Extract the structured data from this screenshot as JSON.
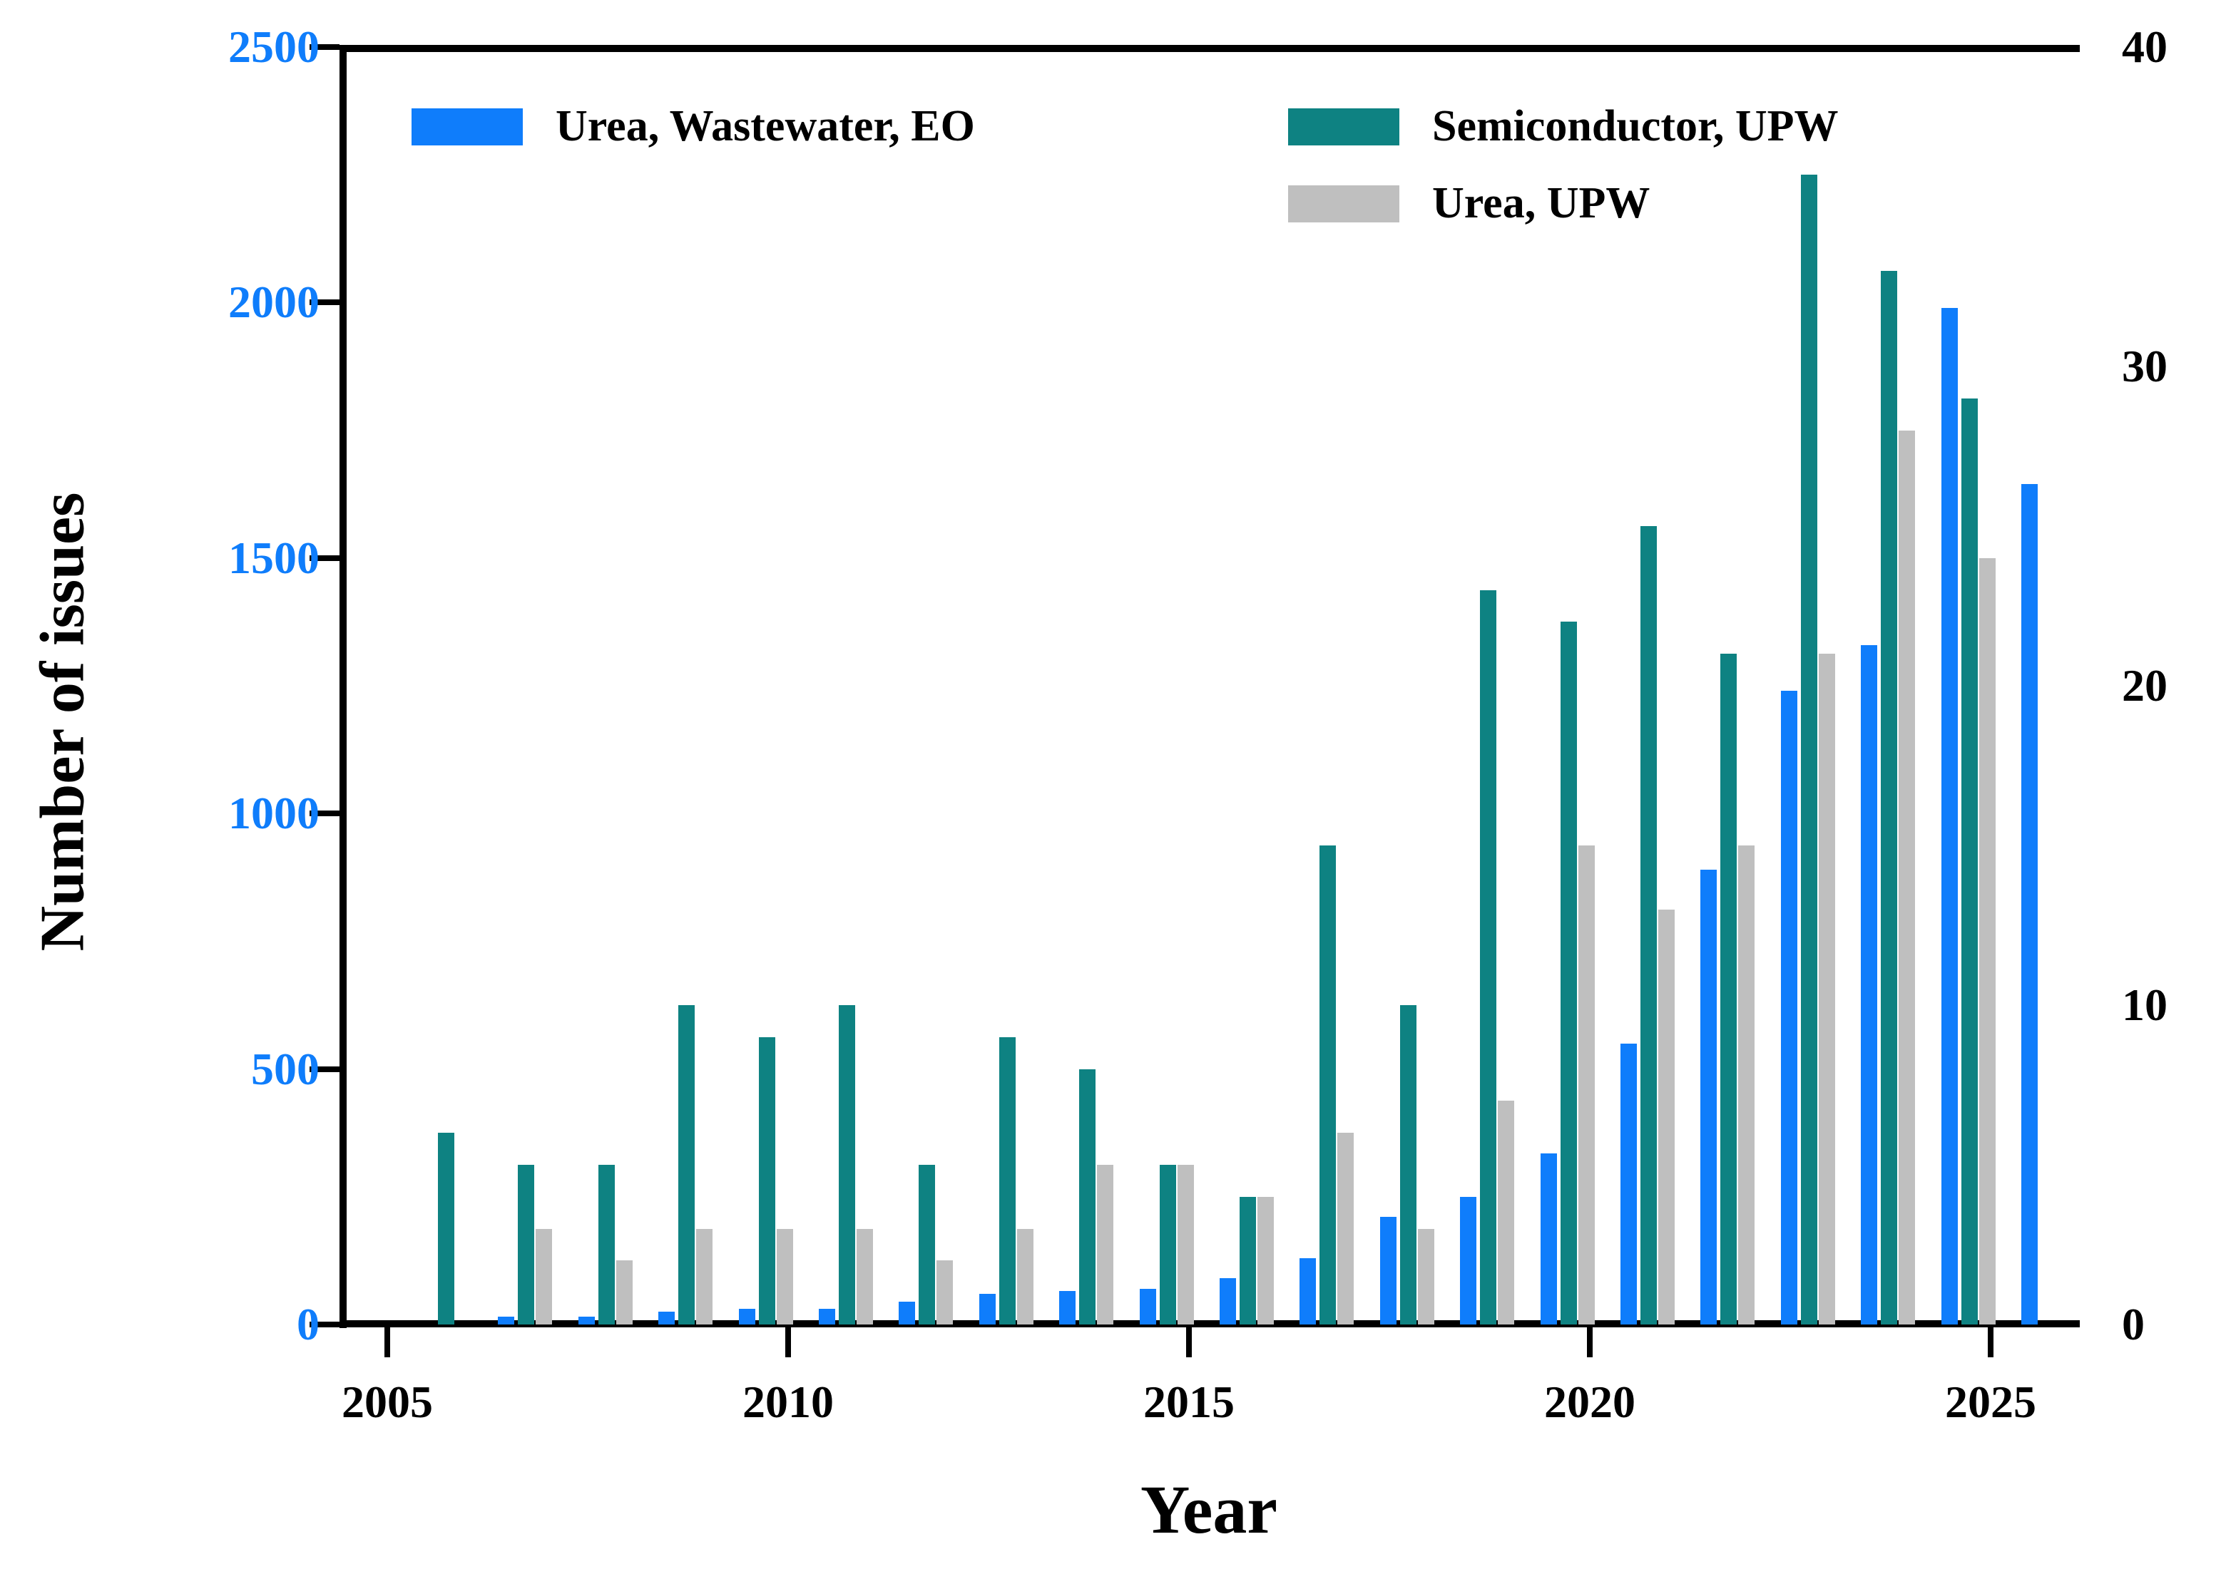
{
  "figure": {
    "y_left_label": "Number of issues",
    "x_label": "Year",
    "legend": [
      {
        "label": "Urea, Wastewater, EO",
        "color": "#0f7dfb"
      },
      {
        "label": "Semiconductor, UPW",
        "color": "#0e8282"
      },
      {
        "label": "Urea, UPW",
        "color": "#bfbfbf"
      }
    ]
  },
  "chart_data": {
    "type": "bar",
    "title": "",
    "xlabel": "Year",
    "ylabel_left": "Number of issues",
    "grid": false,
    "legend_position": "top-inside",
    "x": [
      2005,
      2006,
      2007,
      2008,
      2009,
      2010,
      2011,
      2012,
      2013,
      2014,
      2015,
      2016,
      2017,
      2018,
      2019,
      2020,
      2021,
      2022,
      2023,
      2024,
      2025
    ],
    "x_ticks": [
      2005,
      2010,
      2015,
      2020,
      2025
    ],
    "left_axis": {
      "min": 0,
      "max": 2500,
      "ticks": [
        0,
        500,
        1000,
        1500,
        2000,
        2500
      ],
      "color": "#0f7dfb"
    },
    "right_axis": {
      "min": 0,
      "max": 40,
      "ticks": [
        0,
        10,
        20,
        30,
        40
      ],
      "color": "#000000"
    },
    "series": [
      {
        "name": "Urea, Wastewater, EO",
        "axis": "left",
        "color": "#0f7dfb",
        "values": [
          null,
          15,
          15,
          25,
          30,
          30,
          45,
          60,
          65,
          70,
          90,
          130,
          210,
          250,
          335,
          550,
          890,
          1240,
          1330,
          1990,
          1645
        ]
      },
      {
        "name": "Semiconductor, UPW",
        "axis": "right",
        "color": "#0e8282",
        "values": [
          6,
          5,
          5,
          10,
          9,
          10,
          5,
          9,
          8,
          5,
          4,
          15,
          10,
          23,
          22,
          25,
          21,
          36,
          33,
          29,
          null
        ]
      },
      {
        "name": "Urea, UPW",
        "axis": "right",
        "color": "#bfbfbf",
        "values": [
          null,
          3,
          2,
          3,
          3,
          3,
          2,
          3,
          5,
          5,
          4,
          6,
          3,
          7,
          15,
          13,
          15,
          21,
          28,
          24,
          null
        ]
      }
    ]
  }
}
